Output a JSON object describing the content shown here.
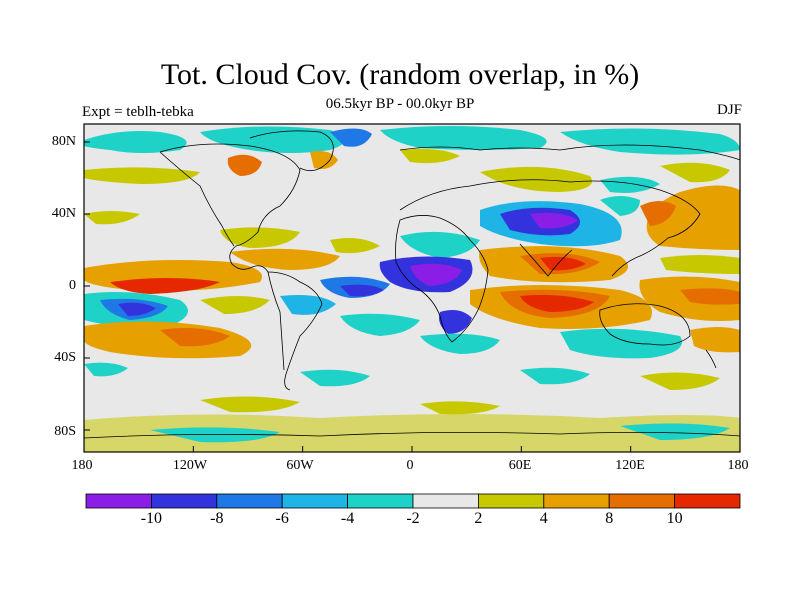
{
  "title": "Tot. Cloud Cov. (random overlap, in %)",
  "subtitle": "06.5kyr BP - 00.0kyr BP",
  "left_label": "Expt = teblh-tebka",
  "right_label": "DJF",
  "lat_labels": [
    "80N",
    "40N",
    "0",
    "40S",
    "80S"
  ],
  "lon_labels": [
    "180",
    "120W",
    "60W",
    "0",
    "60E",
    "120E",
    "180"
  ],
  "colorbar": {
    "colors": [
      "#8b1ee6",
      "#3333dd",
      "#1e78e6",
      "#1eb4e6",
      "#1ed2c8",
      "#e8e8e8",
      "#c8c800",
      "#e6a000",
      "#e66e00",
      "#e62800"
    ],
    "labels": [
      "-10",
      "-8",
      "-6",
      "-4",
      "-2",
      "2",
      "4",
      "8",
      "10"
    ]
  }
}
